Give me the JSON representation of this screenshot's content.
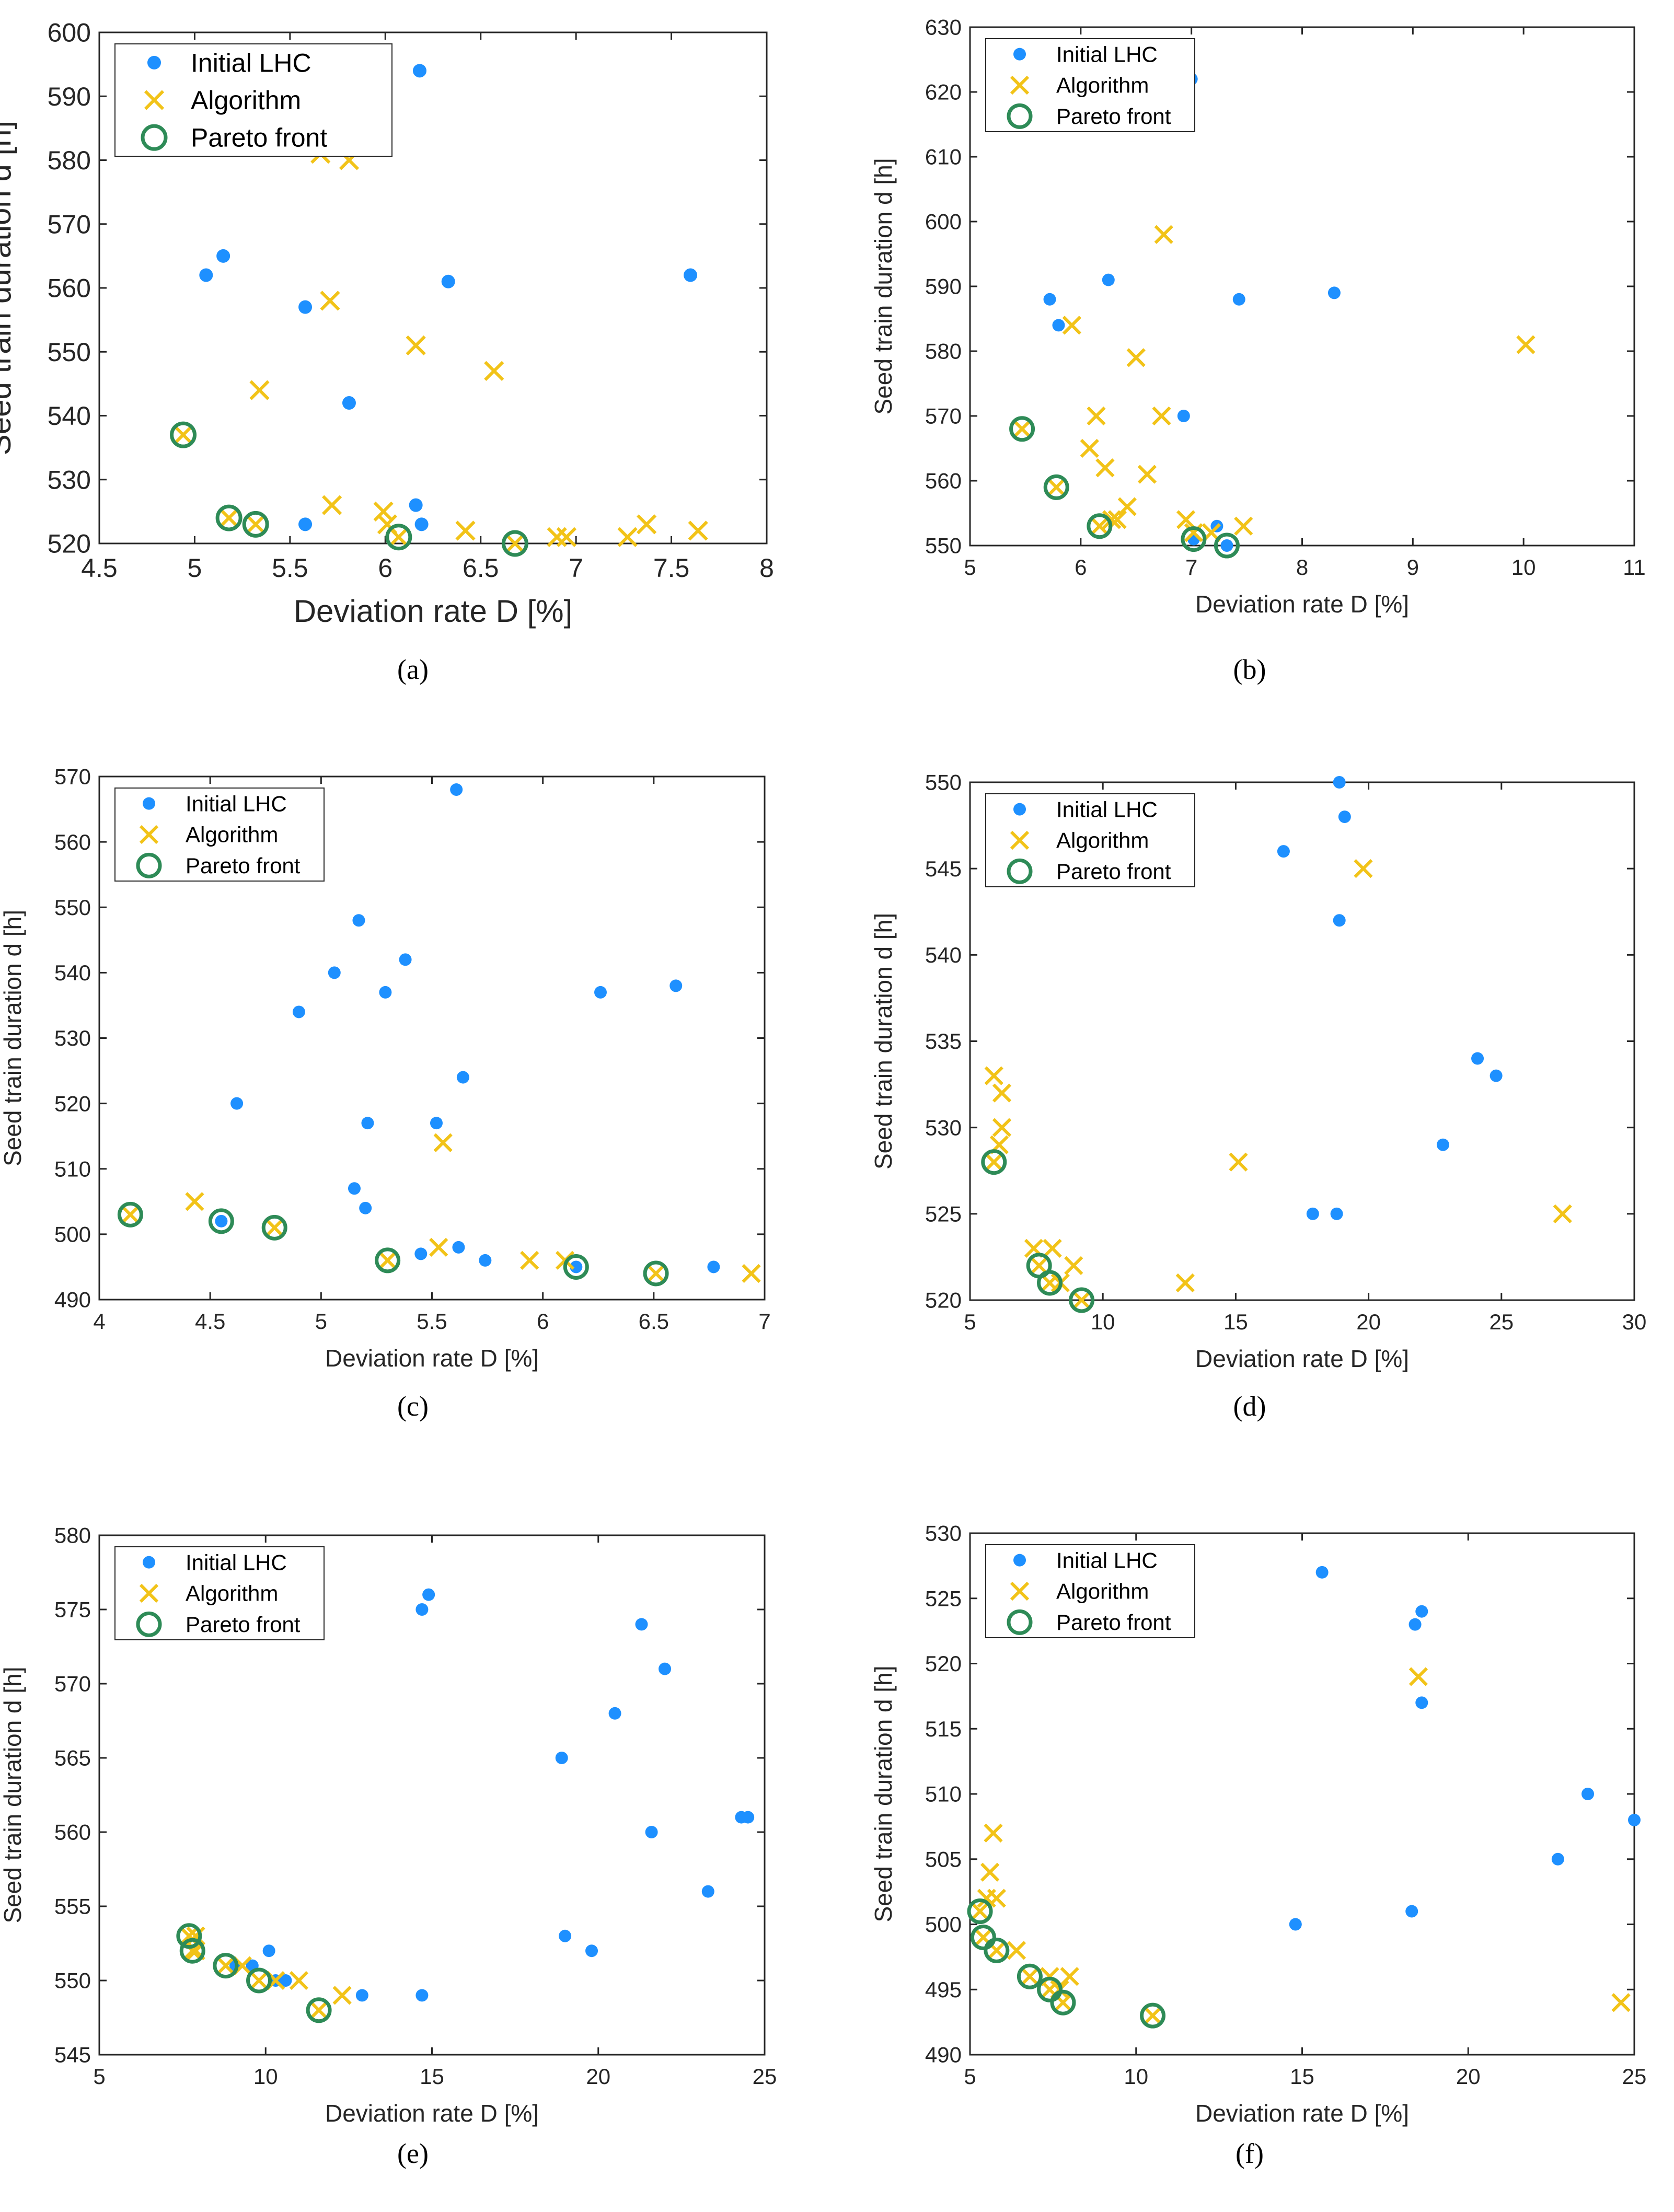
{
  "colors": {
    "lhc": "#1e90ff",
    "algorithm": "#f2c318",
    "pareto": "#2e8b57",
    "axis": "#262626"
  },
  "legend": {
    "lhc": "Initial LHC",
    "algorithm": "Algorithm",
    "pareto": "Pareto front"
  },
  "chart_data": [
    {
      "id": "a",
      "label": "(a)",
      "type": "scatter",
      "xlabel": "Deviation rate  D [%]",
      "ylabel": "Seed train duration  d [h]",
      "xlim": [
        4.5,
        8
      ],
      "ylim": [
        520,
        600
      ],
      "xticks": [
        4.5,
        5,
        5.5,
        6,
        6.5,
        7,
        7.5,
        8
      ],
      "xtick_labels": [
        "4.5",
        "5",
        "5.5",
        "6",
        "6.5",
        "7",
        "7.5",
        "8"
      ],
      "yticks": [
        520,
        530,
        540,
        550,
        560,
        570,
        580,
        590,
        600
      ],
      "ytick_labels": [
        "520",
        "530",
        "540",
        "550",
        "560",
        "570",
        "580",
        "590",
        "600"
      ],
      "lhc": [
        [
          6.18,
          594
        ],
        [
          5.15,
          565
        ],
        [
          5.06,
          562
        ],
        [
          5.58,
          557
        ],
        [
          6.33,
          561
        ],
        [
          7.6,
          562
        ],
        [
          5.81,
          542
        ],
        [
          6.16,
          526
        ],
        [
          6.19,
          523
        ],
        [
          5.58,
          523
        ]
      ],
      "algorithm": [
        [
          5.66,
          581
        ],
        [
          5.81,
          580
        ],
        [
          5.71,
          558
        ],
        [
          6.16,
          551
        ],
        [
          5.34,
          544
        ],
        [
          6.57,
          547
        ],
        [
          5.72,
          526
        ],
        [
          5.99,
          525
        ],
        [
          6.01,
          523
        ],
        [
          6.42,
          522
        ],
        [
          6.9,
          521
        ],
        [
          6.95,
          521
        ],
        [
          7.27,
          521
        ],
        [
          7.37,
          523
        ],
        [
          7.64,
          522
        ],
        [
          5.18,
          524
        ],
        [
          5.32,
          523
        ],
        [
          6.07,
          521
        ],
        [
          6.68,
          520
        ],
        [
          4.94,
          537
        ]
      ],
      "pareto": [
        [
          4.94,
          537
        ],
        [
          5.18,
          524
        ],
        [
          5.32,
          523
        ],
        [
          6.07,
          521
        ],
        [
          6.68,
          520
        ]
      ]
    },
    {
      "id": "b",
      "label": "(b)",
      "type": "scatter",
      "xlabel": "Deviation rate D [%]",
      "ylabel": "Seed train duration  d [h]",
      "xlim": [
        5,
        11
      ],
      "ylim": [
        550,
        630
      ],
      "xticks": [
        5,
        6,
        7,
        8,
        9,
        10,
        11
      ],
      "xtick_labels": [
        "5",
        "6",
        "7",
        "8",
        "9",
        "10",
        "11"
      ],
      "yticks": [
        550,
        560,
        570,
        580,
        590,
        600,
        610,
        620,
        630
      ],
      "ytick_labels": [
        "550",
        "560",
        "570",
        "580",
        "590",
        "600",
        "610",
        "620",
        "630"
      ],
      "lhc": [
        [
          7.0,
          622
        ],
        [
          5.72,
          588
        ],
        [
          6.25,
          591
        ],
        [
          7.43,
          588
        ],
        [
          8.29,
          589
        ],
        [
          5.8,
          584
        ],
        [
          6.93,
          570
        ],
        [
          7.23,
          553
        ],
        [
          7.02,
          551
        ],
        [
          7.32,
          550
        ]
      ],
      "algorithm": [
        [
          6.75,
          598
        ],
        [
          5.92,
          584
        ],
        [
          6.5,
          579
        ],
        [
          10.02,
          581
        ],
        [
          6.14,
          570
        ],
        [
          6.73,
          570
        ],
        [
          6.08,
          565
        ],
        [
          6.22,
          562
        ],
        [
          6.6,
          561
        ],
        [
          6.42,
          556
        ],
        [
          6.33,
          554
        ],
        [
          6.28,
          554
        ],
        [
          6.95,
          554
        ],
        [
          7.02,
          552
        ],
        [
          7.18,
          552
        ],
        [
          7.47,
          553
        ],
        [
          5.47,
          568
        ],
        [
          5.78,
          559
        ],
        [
          6.17,
          553
        ]
      ],
      "pareto": [
        [
          5.47,
          568
        ],
        [
          5.78,
          559
        ],
        [
          6.17,
          553
        ],
        [
          7.02,
          551
        ],
        [
          7.32,
          550
        ]
      ]
    },
    {
      "id": "c",
      "label": "(c)",
      "type": "scatter",
      "xlabel": "Deviation rate  D [%]",
      "ylabel": "Seed train duration  d [h]",
      "xlim": [
        4,
        7
      ],
      "ylim": [
        490,
        570
      ],
      "xticks": [
        4,
        4.5,
        5,
        5.5,
        6,
        6.5,
        7
      ],
      "xtick_labels": [
        "4",
        "4.5",
        "5",
        "5.5",
        "6",
        "6.5",
        "7"
      ],
      "yticks": [
        490,
        500,
        510,
        520,
        530,
        540,
        550,
        560,
        570
      ],
      "ytick_labels": [
        "490",
        "500",
        "510",
        "520",
        "530",
        "540",
        "550",
        "560",
        "570"
      ],
      "lhc": [
        [
          5.61,
          568
        ],
        [
          5.17,
          548
        ],
        [
          5.06,
          540
        ],
        [
          5.38,
          542
        ],
        [
          4.9,
          534
        ],
        [
          5.29,
          537
        ],
        [
          6.26,
          537
        ],
        [
          6.6,
          538
        ],
        [
          5.64,
          524
        ],
        [
          4.62,
          520
        ],
        [
          5.21,
          517
        ],
        [
          5.52,
          517
        ],
        [
          5.15,
          507
        ],
        [
          5.2,
          504
        ],
        [
          5.45,
          497
        ],
        [
          5.62,
          498
        ],
        [
          5.74,
          496
        ],
        [
          6.77,
          495
        ],
        [
          4.55,
          502
        ],
        [
          6.15,
          495
        ]
      ],
      "algorithm": [
        [
          5.55,
          514
        ],
        [
          4.43,
          505
        ],
        [
          5.53,
          498
        ],
        [
          5.94,
          496
        ],
        [
          6.1,
          496
        ],
        [
          6.94,
          494
        ],
        [
          4.14,
          503
        ],
        [
          4.79,
          501
        ],
        [
          5.3,
          496
        ],
        [
          6.51,
          494
        ]
      ],
      "pareto": [
        [
          4.14,
          503
        ],
        [
          4.55,
          502
        ],
        [
          4.79,
          501
        ],
        [
          5.3,
          496
        ],
        [
          6.15,
          495
        ],
        [
          6.51,
          494
        ]
      ]
    },
    {
      "id": "d",
      "label": "(d)",
      "type": "scatter",
      "xlabel": "Deviation rate  D [%]",
      "ylabel": "Seed train duration  d [h]",
      "xlim": [
        5,
        30
      ],
      "ylim": [
        520,
        550
      ],
      "xticks": [
        5,
        10,
        15,
        20,
        25,
        30
      ],
      "xtick_labels": [
        "5",
        "10",
        "15",
        "20",
        "25",
        "30"
      ],
      "yticks": [
        520,
        525,
        530,
        535,
        540,
        545,
        550
      ],
      "ytick_labels": [
        "520",
        "525",
        "530",
        "535",
        "540",
        "545",
        "550"
      ],
      "lhc": [
        [
          18.9,
          550
        ],
        [
          19.1,
          548
        ],
        [
          16.8,
          546
        ],
        [
          18.9,
          542
        ],
        [
          24.1,
          534
        ],
        [
          24.8,
          533
        ],
        [
          22.8,
          529
        ],
        [
          17.9,
          525
        ],
        [
          18.8,
          525
        ]
      ],
      "algorithm": [
        [
          19.8,
          545
        ],
        [
          5.9,
          533
        ],
        [
          6.2,
          532
        ],
        [
          6.2,
          530
        ],
        [
          6.1,
          529
        ],
        [
          15.1,
          528
        ],
        [
          27.3,
          525
        ],
        [
          7.4,
          523
        ],
        [
          8.1,
          523
        ],
        [
          8.9,
          522
        ],
        [
          8.4,
          521
        ],
        [
          13.1,
          521
        ],
        [
          5.9,
          528
        ],
        [
          7.6,
          522
        ],
        [
          8.0,
          521
        ],
        [
          9.2,
          520
        ]
      ],
      "pareto": [
        [
          5.9,
          528
        ],
        [
          7.6,
          522
        ],
        [
          8.0,
          521
        ],
        [
          9.2,
          520
        ]
      ]
    },
    {
      "id": "e",
      "label": "(e)",
      "type": "scatter",
      "xlabel": "Deviation rate  D [%]",
      "ylabel": "Seed train duration  d [h]",
      "xlim": [
        5,
        25
      ],
      "ylim": [
        545,
        580
      ],
      "xticks": [
        5,
        10,
        15,
        20,
        25
      ],
      "xtick_labels": [
        "5",
        "10",
        "15",
        "20",
        "25"
      ],
      "yticks": [
        545,
        550,
        555,
        560,
        565,
        570,
        575,
        580
      ],
      "ytick_labels": [
        "545",
        "550",
        "555",
        "560",
        "565",
        "570",
        "575",
        "580"
      ],
      "lhc": [
        [
          14.9,
          576
        ],
        [
          14.7,
          575
        ],
        [
          21.3,
          574
        ],
        [
          22.0,
          571
        ],
        [
          20.5,
          568
        ],
        [
          18.9,
          565
        ],
        [
          24.3,
          561
        ],
        [
          24.5,
          561
        ],
        [
          21.6,
          560
        ],
        [
          23.3,
          556
        ],
        [
          19.0,
          553
        ],
        [
          19.8,
          552
        ],
        [
          10.1,
          552
        ],
        [
          9.1,
          551
        ],
        [
          9.6,
          551
        ],
        [
          10.3,
          550
        ],
        [
          10.6,
          550
        ],
        [
          12.9,
          549
        ],
        [
          14.7,
          549
        ]
      ],
      "algorithm": [
        [
          7.9,
          553
        ],
        [
          7.9,
          552
        ],
        [
          9.3,
          551
        ],
        [
          10.3,
          550
        ],
        [
          11.0,
          550
        ],
        [
          12.3,
          549
        ],
        [
          7.7,
          553
        ],
        [
          7.8,
          552
        ],
        [
          8.8,
          551
        ],
        [
          9.8,
          550
        ],
        [
          11.6,
          548
        ]
      ],
      "pareto": [
        [
          7.7,
          553
        ],
        [
          7.8,
          552
        ],
        [
          8.8,
          551
        ],
        [
          9.8,
          550
        ],
        [
          11.6,
          548
        ]
      ]
    },
    {
      "id": "f",
      "label": "(f)",
      "type": "scatter",
      "xlabel": "Deviation rate  D [%]",
      "ylabel": "Seed train duration  d [h]",
      "xlim": [
        5,
        25
      ],
      "ylim": [
        490,
        530
      ],
      "xticks": [
        5,
        10,
        15,
        20,
        25
      ],
      "xtick_labels": [
        "5",
        "10",
        "15",
        "20",
        "25"
      ],
      "yticks": [
        490,
        495,
        500,
        505,
        510,
        515,
        520,
        525,
        530
      ],
      "ytick_labels": [
        "490",
        "495",
        "500",
        "505",
        "510",
        "515",
        "520",
        "525",
        "530"
      ],
      "lhc": [
        [
          15.6,
          527
        ],
        [
          18.6,
          524
        ],
        [
          18.4,
          523
        ],
        [
          18.6,
          517
        ],
        [
          23.6,
          510
        ],
        [
          25.0,
          508
        ],
        [
          22.7,
          505
        ],
        [
          14.8,
          500
        ],
        [
          18.3,
          501
        ]
      ],
      "algorithm": [
        [
          18.5,
          519
        ],
        [
          5.7,
          507
        ],
        [
          5.6,
          504
        ],
        [
          5.8,
          502
        ],
        [
          5.5,
          502
        ],
        [
          6.4,
          498
        ],
        [
          7.4,
          496
        ],
        [
          8.0,
          496
        ],
        [
          7.7,
          495
        ],
        [
          24.6,
          494
        ],
        [
          5.3,
          501
        ],
        [
          5.4,
          499
        ],
        [
          5.8,
          498
        ],
        [
          6.8,
          496
        ],
        [
          7.4,
          495
        ],
        [
          7.8,
          494
        ],
        [
          10.5,
          493
        ]
      ],
      "pareto": [
        [
          5.3,
          501
        ],
        [
          5.4,
          499
        ],
        [
          5.8,
          498
        ],
        [
          6.8,
          496
        ],
        [
          7.4,
          495
        ],
        [
          7.8,
          494
        ],
        [
          10.5,
          493
        ]
      ]
    }
  ]
}
